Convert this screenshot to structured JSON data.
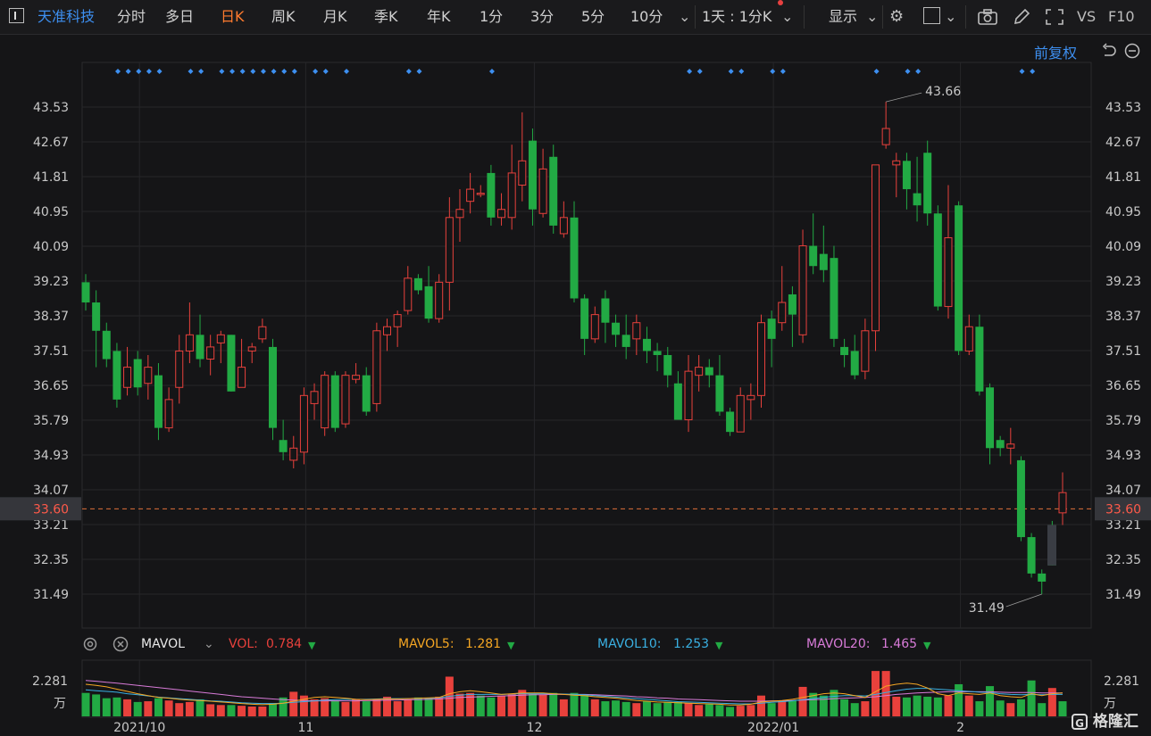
{
  "toolbar": {
    "stock_name": "天准科技",
    "periods": [
      "分时",
      "多日",
      "日K",
      "周K",
      "月K",
      "季K",
      "年K",
      "1分",
      "3分",
      "5分",
      "10分"
    ],
    "active_period": "日K",
    "interval_select": "1天 : 1分K",
    "display_label": "显示",
    "vs_label": "VS",
    "f10_label": "F10",
    "icons": [
      "panel-icon",
      "chevron-down-icon",
      "gear-icon",
      "square-icon",
      "camera-icon",
      "pencil-icon",
      "fullscreen-icon"
    ]
  },
  "chart_header": {
    "adjust_label": "前复权"
  },
  "chart_data": {
    "type": "candlestick",
    "price_ticks": [
      "43.53",
      "42.67",
      "41.81",
      "40.95",
      "40.09",
      "39.23",
      "38.37",
      "37.51",
      "36.65",
      "35.79",
      "34.93",
      "34.07",
      "33.21",
      "32.35",
      "31.49"
    ],
    "current_price": "33.60",
    "high_label": "43.66",
    "low_label": "31.49",
    "x_labels": [
      "2021/10",
      "11",
      "12",
      "2022/01",
      "2"
    ],
    "volume_tick": "2.281",
    "volume_unit": "万",
    "colors": {
      "up": "#e8413c",
      "down": "#22aa44",
      "dash": "#e0703a",
      "ma5": "#f5a623",
      "ma10": "#3ab0e2",
      "ma20": "#d87bd8",
      "marker": "#3d8ff0"
    },
    "candles": [
      {
        "o": 39.2,
        "c": 38.7,
        "h": 39.4,
        "l": 38.5
      },
      {
        "o": 38.7,
        "c": 38.0,
        "h": 39.0,
        "l": 37.1
      },
      {
        "o": 38.0,
        "c": 37.3,
        "h": 38.2,
        "l": 37.1
      },
      {
        "o": 37.5,
        "c": 36.3,
        "h": 37.7,
        "l": 36.1
      },
      {
        "o": 36.6,
        "c": 37.1,
        "h": 37.6,
        "l": 36.4
      },
      {
        "o": 37.3,
        "c": 36.6,
        "h": 37.5,
        "l": 36.4
      },
      {
        "o": 36.7,
        "c": 37.1,
        "h": 37.4,
        "l": 36.3
      },
      {
        "o": 36.9,
        "c": 35.6,
        "h": 37.2,
        "l": 35.3
      },
      {
        "o": 35.6,
        "c": 36.3,
        "h": 36.6,
        "l": 35.5
      },
      {
        "o": 36.6,
        "c": 37.5,
        "h": 37.9,
        "l": 36.2
      },
      {
        "o": 37.5,
        "c": 37.9,
        "h": 38.7,
        "l": 37.2
      },
      {
        "o": 37.9,
        "c": 37.3,
        "h": 38.4,
        "l": 37.1
      },
      {
        "o": 37.3,
        "c": 37.6,
        "h": 37.9,
        "l": 36.9
      },
      {
        "o": 37.7,
        "c": 37.9,
        "h": 38.0,
        "l": 37.2
      },
      {
        "o": 37.9,
        "c": 36.5,
        "h": 37.9,
        "l": 36.5
      },
      {
        "o": 36.6,
        "c": 37.1,
        "h": 37.8,
        "l": 36.6
      },
      {
        "o": 37.5,
        "c": 37.6,
        "h": 37.7,
        "l": 37.2
      },
      {
        "o": 37.8,
        "c": 38.1,
        "h": 38.3,
        "l": 37.7
      },
      {
        "o": 37.6,
        "c": 35.6,
        "h": 37.8,
        "l": 35.3
      },
      {
        "o": 35.3,
        "c": 35.0,
        "h": 35.8,
        "l": 34.8
      },
      {
        "o": 34.8,
        "c": 35.1,
        "h": 35.4,
        "l": 34.6
      },
      {
        "o": 35.0,
        "c": 36.4,
        "h": 36.6,
        "l": 34.7
      },
      {
        "o": 36.2,
        "c": 36.5,
        "h": 36.7,
        "l": 35.8
      },
      {
        "o": 35.6,
        "c": 36.9,
        "h": 37.0,
        "l": 35.4
      },
      {
        "o": 36.9,
        "c": 35.6,
        "h": 37.0,
        "l": 35.5
      },
      {
        "o": 35.7,
        "c": 36.9,
        "h": 37.0,
        "l": 35.6
      },
      {
        "o": 36.8,
        "c": 36.9,
        "h": 37.2,
        "l": 36.7
      },
      {
        "o": 36.9,
        "c": 36.0,
        "h": 37.1,
        "l": 35.9
      },
      {
        "o": 36.2,
        "c": 38.0,
        "h": 38.2,
        "l": 36.0
      },
      {
        "o": 37.9,
        "c": 38.1,
        "h": 38.3,
        "l": 37.5
      },
      {
        "o": 38.1,
        "c": 38.4,
        "h": 38.5,
        "l": 37.6
      },
      {
        "o": 38.5,
        "c": 39.3,
        "h": 39.6,
        "l": 38.4
      },
      {
        "o": 39.3,
        "c": 39.0,
        "h": 39.4,
        "l": 38.9
      },
      {
        "o": 39.1,
        "c": 38.3,
        "h": 39.6,
        "l": 38.2
      },
      {
        "o": 38.3,
        "c": 39.2,
        "h": 39.4,
        "l": 38.2
      },
      {
        "o": 39.2,
        "c": 40.8,
        "h": 41.3,
        "l": 38.5
      },
      {
        "o": 40.8,
        "c": 41.0,
        "h": 41.5,
        "l": 40.2
      },
      {
        "o": 41.2,
        "c": 41.5,
        "h": 41.9,
        "l": 40.9
      },
      {
        "o": 41.4,
        "c": 41.4,
        "h": 41.6,
        "l": 41.3
      },
      {
        "o": 41.9,
        "c": 40.8,
        "h": 42.1,
        "l": 40.6
      },
      {
        "o": 40.8,
        "c": 41.0,
        "h": 41.4,
        "l": 40.6
      },
      {
        "o": 40.8,
        "c": 41.9,
        "h": 42.6,
        "l": 40.5
      },
      {
        "o": 41.6,
        "c": 42.2,
        "h": 43.4,
        "l": 41.2
      },
      {
        "o": 42.7,
        "c": 41.0,
        "h": 43.0,
        "l": 40.6
      },
      {
        "o": 40.9,
        "c": 42.0,
        "h": 42.5,
        "l": 40.8
      },
      {
        "o": 42.3,
        "c": 40.6,
        "h": 42.6,
        "l": 40.4
      },
      {
        "o": 40.4,
        "c": 40.8,
        "h": 41.2,
        "l": 40.3
      },
      {
        "o": 40.8,
        "c": 38.8,
        "h": 41.2,
        "l": 38.7
      },
      {
        "o": 38.8,
        "c": 37.8,
        "h": 38.9,
        "l": 37.4
      },
      {
        "o": 37.8,
        "c": 38.4,
        "h": 38.6,
        "l": 37.7
      },
      {
        "o": 38.8,
        "c": 38.2,
        "h": 39.0,
        "l": 37.7
      },
      {
        "o": 38.2,
        "c": 37.9,
        "h": 38.4,
        "l": 37.6
      },
      {
        "o": 37.9,
        "c": 37.6,
        "h": 38.4,
        "l": 37.3
      },
      {
        "o": 37.8,
        "c": 38.2,
        "h": 38.4,
        "l": 37.4
      },
      {
        "o": 37.8,
        "c": 37.5,
        "h": 38.1,
        "l": 37.2
      },
      {
        "o": 37.5,
        "c": 37.4,
        "h": 37.7,
        "l": 37.0
      },
      {
        "o": 37.4,
        "c": 36.9,
        "h": 37.6,
        "l": 36.6
      },
      {
        "o": 36.7,
        "c": 35.8,
        "h": 37.0,
        "l": 35.8
      },
      {
        "o": 35.8,
        "c": 37.0,
        "h": 37.4,
        "l": 35.5
      },
      {
        "o": 36.9,
        "c": 37.1,
        "h": 37.4,
        "l": 36.5
      },
      {
        "o": 37.1,
        "c": 36.9,
        "h": 37.3,
        "l": 36.6
      },
      {
        "o": 36.9,
        "c": 36.0,
        "h": 37.4,
        "l": 35.9
      },
      {
        "o": 36.0,
        "c": 35.5,
        "h": 36.1,
        "l": 35.4
      },
      {
        "o": 35.5,
        "c": 36.4,
        "h": 36.6,
        "l": 35.5
      },
      {
        "o": 36.3,
        "c": 36.4,
        "h": 36.7,
        "l": 35.8
      },
      {
        "o": 36.4,
        "c": 38.2,
        "h": 38.4,
        "l": 36.1
      },
      {
        "o": 38.3,
        "c": 37.8,
        "h": 38.5,
        "l": 37.1
      },
      {
        "o": 38.2,
        "c": 38.7,
        "h": 39.6,
        "l": 38.0
      },
      {
        "o": 38.9,
        "c": 38.4,
        "h": 39.1,
        "l": 37.6
      },
      {
        "o": 37.9,
        "c": 40.1,
        "h": 40.5,
        "l": 37.7
      },
      {
        "o": 40.1,
        "c": 39.6,
        "h": 40.9,
        "l": 39.4
      },
      {
        "o": 39.9,
        "c": 39.5,
        "h": 40.6,
        "l": 39.2
      },
      {
        "o": 39.8,
        "c": 37.8,
        "h": 40.1,
        "l": 37.6
      },
      {
        "o": 37.6,
        "c": 37.4,
        "h": 37.8,
        "l": 37.1
      },
      {
        "o": 37.5,
        "c": 36.9,
        "h": 37.9,
        "l": 36.8
      },
      {
        "o": 37.0,
        "c": 38.0,
        "h": 38.3,
        "l": 36.8
      },
      {
        "o": 38.0,
        "c": 42.1,
        "h": 42.1,
        "l": 37.5
      },
      {
        "o": 42.6,
        "c": 43.0,
        "h": 43.66,
        "l": 42.5
      },
      {
        "o": 42.1,
        "c": 42.2,
        "h": 42.4,
        "l": 41.3
      },
      {
        "o": 42.2,
        "c": 41.5,
        "h": 42.4,
        "l": 41.0
      },
      {
        "o": 41.4,
        "c": 41.1,
        "h": 42.3,
        "l": 40.7
      },
      {
        "o": 42.4,
        "c": 40.9,
        "h": 42.7,
        "l": 40.6
      },
      {
        "o": 40.9,
        "c": 38.6,
        "h": 41.1,
        "l": 38.5
      },
      {
        "o": 38.6,
        "c": 40.3,
        "h": 41.6,
        "l": 38.3
      },
      {
        "o": 41.1,
        "c": 37.5,
        "h": 41.2,
        "l": 37.4
      },
      {
        "o": 37.5,
        "c": 38.1,
        "h": 38.4,
        "l": 37.4
      },
      {
        "o": 38.1,
        "c": 36.5,
        "h": 38.4,
        "l": 36.4
      },
      {
        "o": 36.6,
        "c": 35.1,
        "h": 36.7,
        "l": 34.7
      },
      {
        "o": 35.3,
        "c": 35.1,
        "h": 35.4,
        "l": 34.9
      },
      {
        "o": 35.1,
        "c": 35.2,
        "h": 35.6,
        "l": 34.7
      },
      {
        "o": 34.8,
        "c": 32.9,
        "h": 34.9,
        "l": 32.8
      },
      {
        "o": 32.9,
        "c": 32.0,
        "h": 33.0,
        "l": 31.9
      },
      {
        "o": 32.0,
        "c": 31.8,
        "h": 32.1,
        "l": 31.49
      },
      {
        "o": 33.2,
        "c": 32.2,
        "h": 33.3,
        "l": 32.2
      },
      {
        "o": 33.5,
        "c": 34.0,
        "h": 34.5,
        "l": 33.2
      }
    ],
    "volumes": [
      0.62,
      0.58,
      0.48,
      0.5,
      0.45,
      0.38,
      0.4,
      0.48,
      0.42,
      0.35,
      0.38,
      0.45,
      0.32,
      0.3,
      0.3,
      0.28,
      0.26,
      0.26,
      0.35,
      0.5,
      0.65,
      0.55,
      0.45,
      0.48,
      0.42,
      0.38,
      0.45,
      0.4,
      0.45,
      0.52,
      0.4,
      0.45,
      0.5,
      0.48,
      0.52,
      1.05,
      0.6,
      0.62,
      0.55,
      0.5,
      0.55,
      0.6,
      0.7,
      0.6,
      0.58,
      0.62,
      0.45,
      0.62,
      0.58,
      0.45,
      0.4,
      0.42,
      0.38,
      0.35,
      0.4,
      0.35,
      0.38,
      0.38,
      0.35,
      0.3,
      0.32,
      0.3,
      0.25,
      0.28,
      0.3,
      0.55,
      0.35,
      0.42,
      0.42,
      0.78,
      0.62,
      0.55,
      0.7,
      0.45,
      0.35,
      0.4,
      1.2,
      1.2,
      0.52,
      0.5,
      0.55,
      0.52,
      0.5,
      0.55,
      0.85,
      0.55,
      0.4,
      0.8,
      0.42,
      0.35,
      0.45,
      0.95,
      0.35,
      0.75,
      0.4
    ],
    "vol_colors": [
      "d",
      "d",
      "d",
      "d",
      "u",
      "d",
      "u",
      "d",
      "u",
      "u",
      "u",
      "d",
      "u",
      "u",
      "d",
      "u",
      "u",
      "u",
      "d",
      "d",
      "u",
      "u",
      "u",
      "u",
      "d",
      "u",
      "u",
      "d",
      "u",
      "u",
      "u",
      "u",
      "d",
      "d",
      "u",
      "u",
      "u",
      "u",
      "d",
      "d",
      "u",
      "u",
      "u",
      "d",
      "u",
      "d",
      "u",
      "d",
      "d",
      "u",
      "d",
      "d",
      "d",
      "u",
      "d",
      "d",
      "d",
      "d",
      "u",
      "u",
      "d",
      "d",
      "d",
      "u",
      "u",
      "u",
      "d",
      "u",
      "d",
      "u",
      "d",
      "d",
      "d",
      "d",
      "d",
      "u",
      "u",
      "u",
      "u",
      "d",
      "d",
      "d",
      "d",
      "u",
      "d",
      "u",
      "d",
      "d",
      "d",
      "u",
      "d",
      "d",
      "d",
      "u",
      "d"
    ],
    "top_markers": [
      0,
      1,
      2,
      3,
      4,
      7,
      8,
      10,
      11,
      12,
      13,
      14,
      15,
      16,
      17,
      19,
      20,
      22,
      28,
      29,
      36,
      55,
      56,
      59,
      60,
      63,
      64,
      73,
      76,
      77,
      87,
      88
    ],
    "ma5": [
      0.85,
      0.82,
      0.78,
      0.72,
      0.66,
      0.6,
      0.55,
      0.5,
      0.48,
      0.45,
      0.43,
      0.42,
      0.4,
      0.38,
      0.36,
      0.34,
      0.32,
      0.31,
      0.32,
      0.35,
      0.4,
      0.45,
      0.5,
      0.52,
      0.5,
      0.48,
      0.45,
      0.44,
      0.45,
      0.46,
      0.46,
      0.47,
      0.48,
      0.49,
      0.5,
      0.6,
      0.65,
      0.68,
      0.65,
      0.62,
      0.58,
      0.6,
      0.62,
      0.62,
      0.62,
      0.6,
      0.58,
      0.56,
      0.55,
      0.52,
      0.5,
      0.48,
      0.45,
      0.42,
      0.4,
      0.38,
      0.37,
      0.36,
      0.35,
      0.34,
      0.33,
      0.32,
      0.3,
      0.3,
      0.32,
      0.38,
      0.4,
      0.42,
      0.45,
      0.5,
      0.55,
      0.6,
      0.62,
      0.6,
      0.55,
      0.5,
      0.65,
      0.8,
      0.85,
      0.88,
      0.85,
      0.75,
      0.6,
      0.55,
      0.62,
      0.6,
      0.58,
      0.62,
      0.55,
      0.52,
      0.5,
      0.6,
      0.55,
      0.6,
      0.62
    ],
    "ma10": [
      0.7,
      0.68,
      0.66,
      0.64,
      0.6,
      0.57,
      0.54,
      0.51,
      0.49,
      0.47,
      0.45,
      0.43,
      0.41,
      0.4,
      0.38,
      0.36,
      0.35,
      0.34,
      0.34,
      0.35,
      0.37,
      0.39,
      0.41,
      0.43,
      0.44,
      0.45,
      0.45,
      0.45,
      0.46,
      0.47,
      0.47,
      0.47,
      0.48,
      0.48,
      0.49,
      0.53,
      0.56,
      0.58,
      0.58,
      0.58,
      0.58,
      0.59,
      0.6,
      0.6,
      0.6,
      0.6,
      0.59,
      0.58,
      0.57,
      0.55,
      0.53,
      0.51,
      0.49,
      0.47,
      0.45,
      0.43,
      0.41,
      0.39,
      0.38,
      0.37,
      0.36,
      0.35,
      0.34,
      0.33,
      0.33,
      0.35,
      0.37,
      0.39,
      0.41,
      0.44,
      0.47,
      0.5,
      0.53,
      0.55,
      0.55,
      0.54,
      0.58,
      0.63,
      0.68,
      0.72,
      0.74,
      0.74,
      0.72,
      0.7,
      0.68,
      0.66,
      0.64,
      0.63,
      0.6,
      0.58,
      0.57,
      0.58,
      0.57,
      0.58,
      0.58
    ],
    "ma20": [
      0.95,
      0.93,
      0.9,
      0.88,
      0.85,
      0.82,
      0.79,
      0.76,
      0.73,
      0.7,
      0.67,
      0.64,
      0.61,
      0.58,
      0.55,
      0.52,
      0.5,
      0.48,
      0.46,
      0.44,
      0.43,
      0.42,
      0.41,
      0.41,
      0.41,
      0.41,
      0.41,
      0.42,
      0.42,
      0.43,
      0.43,
      0.44,
      0.44,
      0.45,
      0.46,
      0.48,
      0.5,
      0.51,
      0.52,
      0.53,
      0.54,
      0.55,
      0.56,
      0.57,
      0.57,
      0.58,
      0.58,
      0.58,
      0.58,
      0.57,
      0.56,
      0.55,
      0.54,
      0.52,
      0.51,
      0.49,
      0.48,
      0.46,
      0.45,
      0.44,
      0.43,
      0.42,
      0.41,
      0.4,
      0.4,
      0.4,
      0.41,
      0.41,
      0.42,
      0.43,
      0.44,
      0.45,
      0.47,
      0.48,
      0.49,
      0.5,
      0.52,
      0.55,
      0.58,
      0.6,
      0.62,
      0.63,
      0.64,
      0.65,
      0.65,
      0.65,
      0.65,
      0.65,
      0.64,
      0.63,
      0.63,
      0.63,
      0.62,
      0.62,
      0.62
    ]
  },
  "indicator": {
    "name": "MAVOL",
    "vol_label": "VOL:",
    "vol_value": "0.784",
    "mavol5_label": "MAVOL5:",
    "mavol5_value": "1.281",
    "mavol10_label": "MAVOL10:",
    "mavol10_value": "1.253",
    "mavol20_label": "MAVOL20:",
    "mavol20_value": "1.465"
  },
  "branding": {
    "logo_text": "格隆汇"
  }
}
